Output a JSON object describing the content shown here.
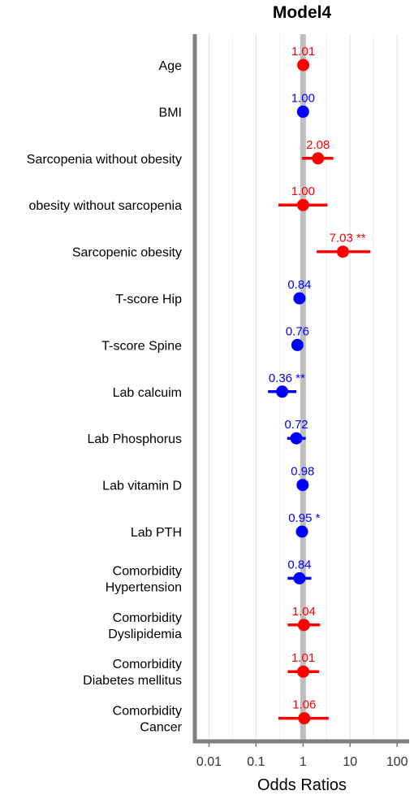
{
  "chart_data": {
    "type": "scatter",
    "title": "Model4",
    "xlabel": "Odds Ratios",
    "ylabel": "",
    "x_scale": "log",
    "xlim": [
      0.005,
      180
    ],
    "x_ticks": [
      "0.01",
      "0.1",
      "1",
      "10",
      "100"
    ],
    "reference_line": 1,
    "grid": true,
    "colors": {
      "positive": "#ff0000",
      "negative": "#0000ff",
      "reference": "#bebebe"
    },
    "rows": [
      {
        "label": [
          "Age"
        ],
        "or": 1.01,
        "low": 1.0,
        "high": 1.02,
        "value_text": "1.01",
        "color": "#ff0000"
      },
      {
        "label": [
          "BMI"
        ],
        "or": 1.0,
        "low": 0.99,
        "high": 1.01,
        "value_text": "1.00",
        "color": "#0000ff"
      },
      {
        "label": [
          "Sarcopenia without obesity"
        ],
        "or": 2.08,
        "low": 0.95,
        "high": 4.4,
        "value_text": "2.08",
        "color": "#ff0000"
      },
      {
        "label": [
          "obesity without sarcopenia"
        ],
        "or": 1.0,
        "low": 0.3,
        "high": 3.3,
        "value_text": "1.00",
        "color": "#ff0000"
      },
      {
        "label": [
          "Sarcopenic obesity"
        ],
        "or": 7.03,
        "low": 1.95,
        "high": 27.0,
        "value_text": "7.03 **",
        "color": "#ff0000"
      },
      {
        "label": [
          "T-score Hip"
        ],
        "or": 0.84,
        "low": 0.72,
        "high": 0.98,
        "value_text": "0.84",
        "color": "#0000ff"
      },
      {
        "label": [
          "T-score Spine"
        ],
        "or": 0.76,
        "low": 0.57,
        "high": 1.0,
        "value_text": "0.76",
        "color": "#0000ff"
      },
      {
        "label": [
          "Lab calcuim"
        ],
        "or": 0.36,
        "low": 0.18,
        "high": 0.72,
        "value_text": "0.36 **",
        "color": "#0000ff"
      },
      {
        "label": [
          "Lab Phosphorus"
        ],
        "or": 0.72,
        "low": 0.46,
        "high": 1.14,
        "value_text": "0.72",
        "color": "#0000ff"
      },
      {
        "label": [
          "Lab vitamin D"
        ],
        "or": 0.98,
        "low": 0.96,
        "high": 1.0,
        "value_text": "0.98",
        "color": "#0000ff"
      },
      {
        "label": [
          "Lab PTH"
        ],
        "or": 0.95,
        "low": 0.91,
        "high": 0.99,
        "value_text": "0.95 *",
        "color": "#0000ff"
      },
      {
        "label": [
          "Comorbidity",
          "Hypertension"
        ],
        "or": 0.84,
        "low": 0.47,
        "high": 1.5,
        "value_text": "0.84",
        "color": "#0000ff"
      },
      {
        "label": [
          "Comorbidity",
          "Dyslipidemia"
        ],
        "or": 1.04,
        "low": 0.47,
        "high": 2.3,
        "value_text": "1.04",
        "color": "#ff0000"
      },
      {
        "label": [
          "Comorbidity",
          "Diabetes mellitus"
        ],
        "or": 1.01,
        "low": 0.47,
        "high": 2.2,
        "value_text": "1.01",
        "color": "#ff0000"
      },
      {
        "label": [
          "Comorbidity",
          "Cancer"
        ],
        "or": 1.06,
        "low": 0.3,
        "high": 3.5,
        "value_text": "1.06",
        "color": "#ff0000"
      }
    ]
  }
}
